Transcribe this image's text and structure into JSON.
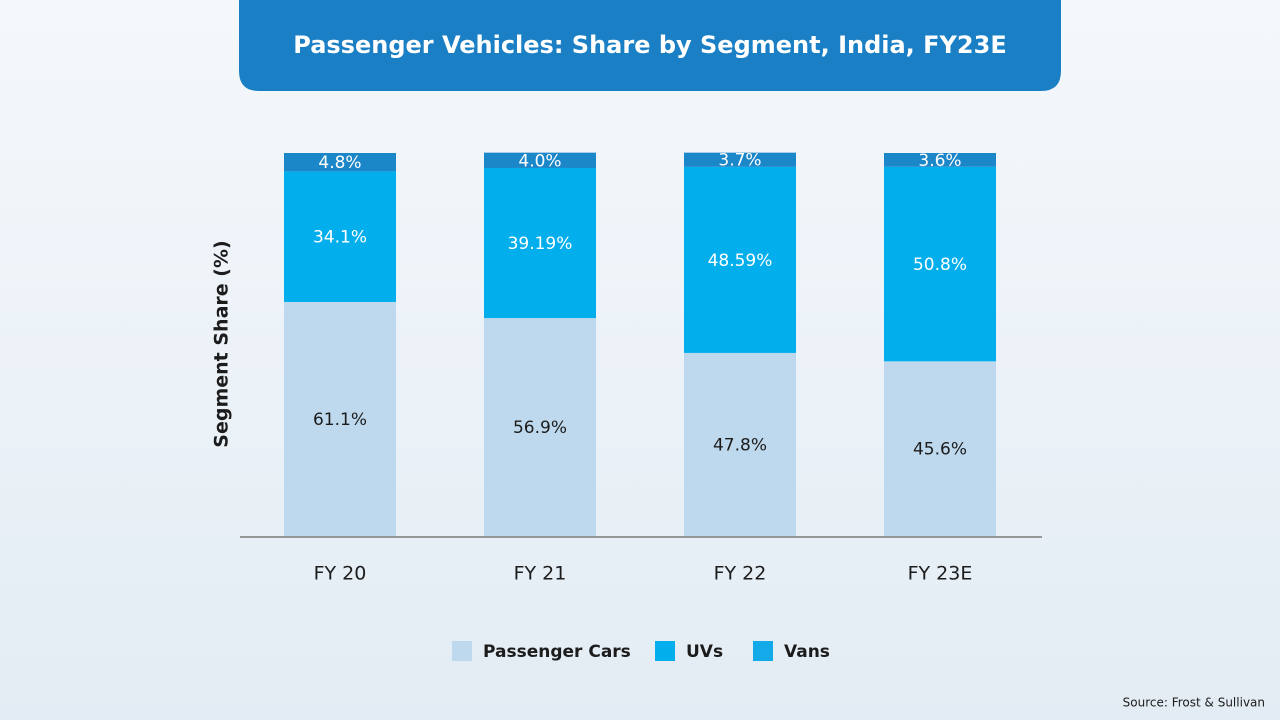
{
  "chart_data": {
    "type": "stacked_bar",
    "title": "Passenger Vehicles: Share by Segment, India, FY23E",
    "y_label": "Segment Share (%)",
    "categories": [
      "FY 20",
      "FY 21",
      "FY 22",
      "FY 23E"
    ],
    "series": [
      {
        "name": "Passenger Cars",
        "color": "#bed9ed",
        "values": [
          61.1,
          56.9,
          47.8,
          45.6
        ],
        "value_labels": [
          "61.1%",
          "56.9%",
          "47.8%",
          "45.6%"
        ]
      },
      {
        "name": "UVs",
        "color": "#03aeec",
        "values": [
          34.1,
          39.19,
          48.59,
          50.8
        ],
        "value_labels": [
          "34.1%",
          "39.19%",
          "48.59%",
          "50.8%"
        ]
      },
      {
        "name": "Vans",
        "color": "#1b86c8",
        "values": [
          4.8,
          4.0,
          3.7,
          3.6
        ],
        "value_labels": [
          "4.8%",
          "4.0%",
          "3.7%",
          "3.6%"
        ]
      }
    ],
    "ylim": [
      0,
      100
    ],
    "source": "Source: Frost & Sullivan"
  }
}
